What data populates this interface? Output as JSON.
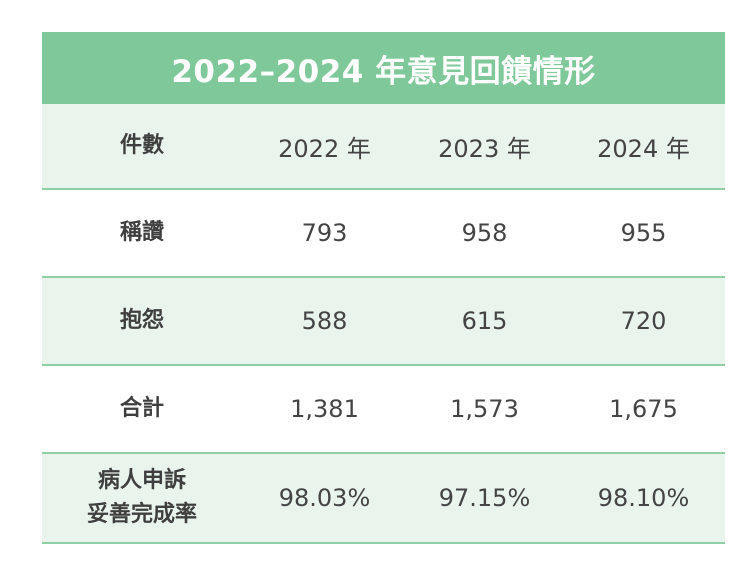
{
  "table": {
    "title": "2022–2024 年意見回饋情形",
    "header": {
      "label": "件數",
      "years": [
        "2022 年",
        "2023 年",
        "2024 年"
      ]
    },
    "rows": [
      {
        "label": "稱讚",
        "values": [
          "793",
          "958",
          "955"
        ]
      },
      {
        "label": "抱怨",
        "values": [
          "588",
          "615",
          "720"
        ]
      },
      {
        "label": "合計",
        "values": [
          "1,381",
          "1,573",
          "1,675"
        ]
      },
      {
        "label_lines": [
          "病人申訴",
          "妥善完成率"
        ],
        "values": [
          "98.03%",
          "97.15%",
          "98.10%"
        ]
      }
    ],
    "colors": {
      "title_bg": "#7ec89a",
      "shaded_row_bg": "#e9f5ec",
      "divider": "#8fcfa6"
    }
  }
}
